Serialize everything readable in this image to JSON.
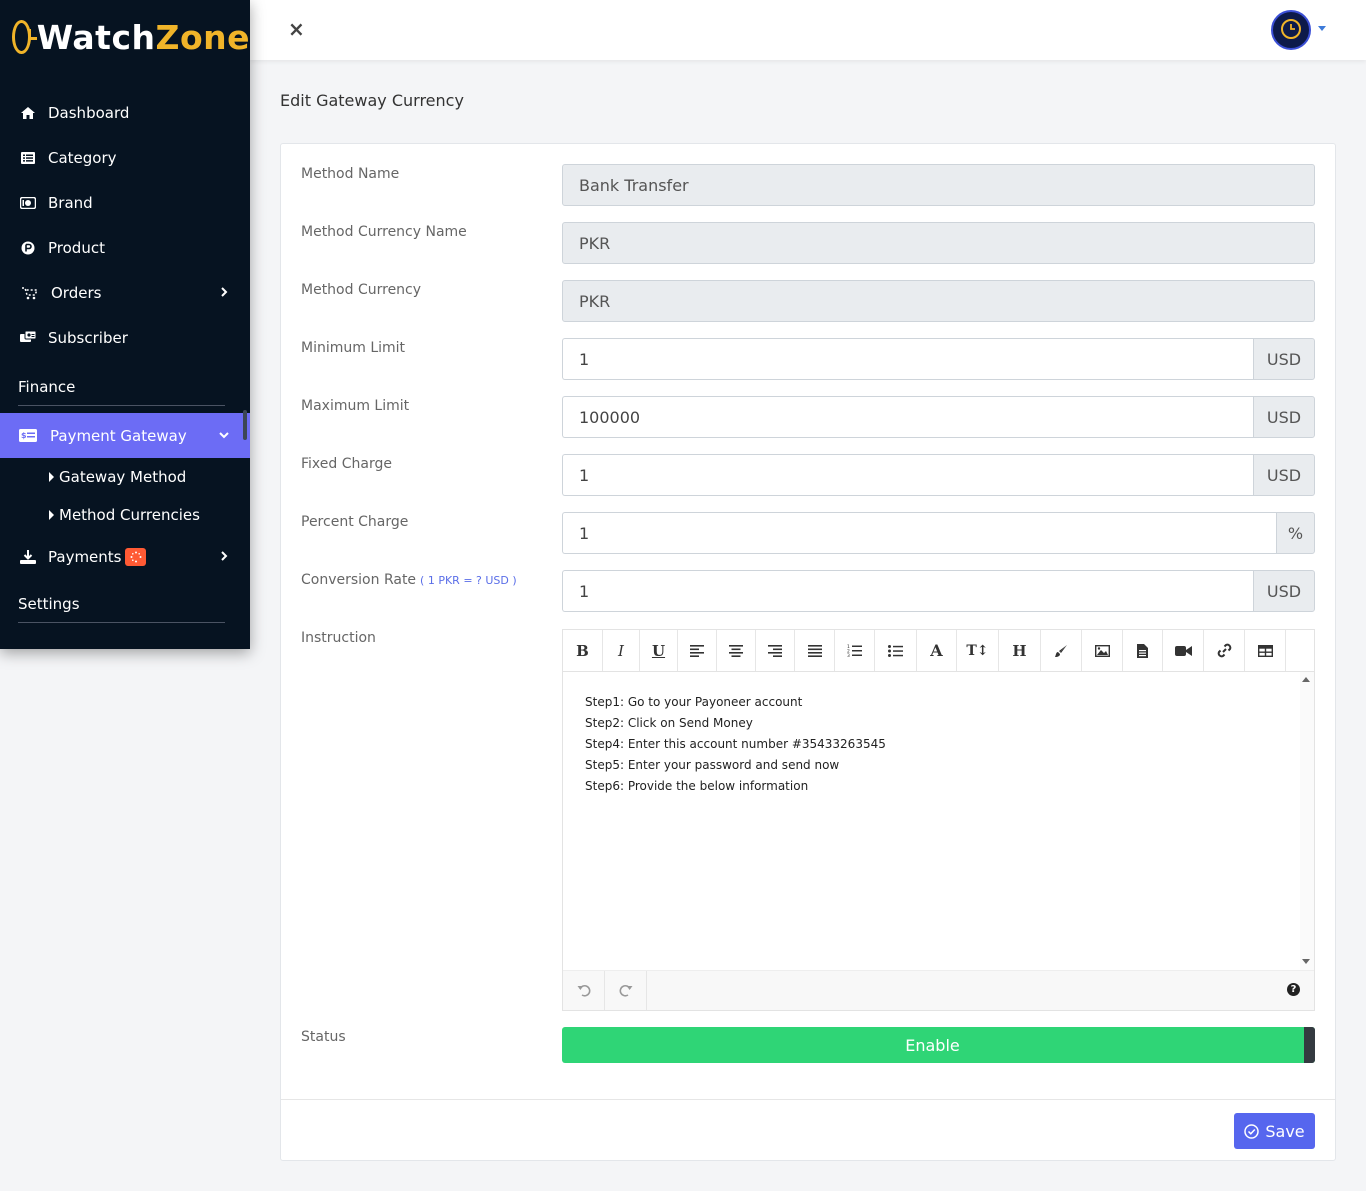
{
  "brand": {
    "name_part1": "Watch",
    "name_part2": "Zone"
  },
  "sidebar": {
    "items": [
      {
        "label": "Dashboard",
        "icon": "home-icon"
      },
      {
        "label": "Category",
        "icon": "list-icon"
      },
      {
        "label": "Brand",
        "icon": "brand-icon"
      },
      {
        "label": "Product",
        "icon": "product-icon"
      },
      {
        "label": "Orders",
        "icon": "cart-icon"
      },
      {
        "label": "Subscriber",
        "icon": "subscriber-icon"
      }
    ],
    "section_finance": "Finance",
    "payment_gateway": "Payment Gateway",
    "submenu": [
      "Gateway Method",
      "Method Currencies"
    ],
    "payments": "Payments",
    "section_settings": "Settings"
  },
  "topbar": {
    "close_symbol": "×"
  },
  "page": {
    "title": "Edit Gateway Currency"
  },
  "form": {
    "method_name": {
      "label": "Method Name",
      "value": "Bank Transfer"
    },
    "method_currency_name": {
      "label": "Method Currency Name",
      "value": "PKR"
    },
    "method_currency": {
      "label": "Method Currency",
      "value": "PKR"
    },
    "minimum_limit": {
      "label": "Minimum Limit",
      "value": "1",
      "addon": "USD"
    },
    "maximum_limit": {
      "label": "Maximum Limit",
      "value": "100000",
      "addon": "USD"
    },
    "fixed_charge": {
      "label": "Fixed Charge",
      "value": "1",
      "addon": "USD"
    },
    "percent_charge": {
      "label": "Percent Charge",
      "value": "1",
      "addon": "%"
    },
    "conversion_rate": {
      "label": "Conversion Rate",
      "hint": "( 1 PKR = ? USD )",
      "value": "1",
      "addon": "USD"
    },
    "instruction": {
      "label": "Instruction",
      "lines": [
        "Step1: Go to your Payoneer account",
        "Step2: Click on Send Money",
        "Step4: Enter this account number #35433263545",
        "Step5: Enter your password and send now",
        "Step6: Provide the below information"
      ]
    },
    "status": {
      "label": "Status",
      "value": "Enable"
    },
    "save_label": "Save"
  },
  "colors": {
    "sidebar_bg": "#061321",
    "accent": "#6c6cf5",
    "brand_gold": "#f0b429",
    "status_green": "#2fd576",
    "save_blue": "#5666ee"
  }
}
